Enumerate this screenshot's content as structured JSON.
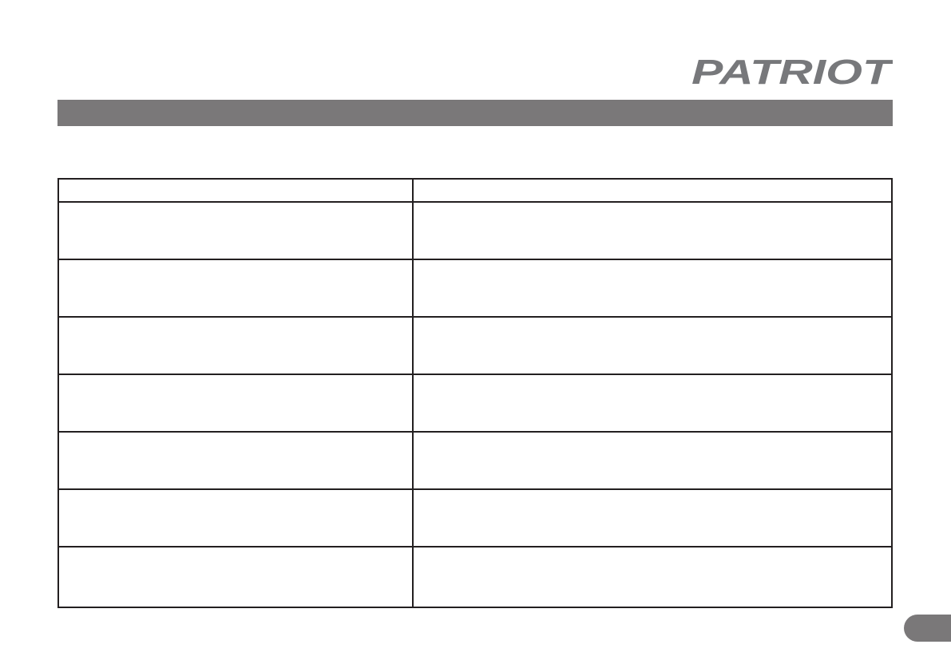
{
  "logo": {
    "text": "PATRIOT",
    "color": "#77787b"
  },
  "colors": {
    "header_bar": "#7a7879",
    "table_border": "#231f20",
    "page_tab": "#7a7879"
  },
  "table": {
    "columns": 2,
    "body_rows": 7
  }
}
